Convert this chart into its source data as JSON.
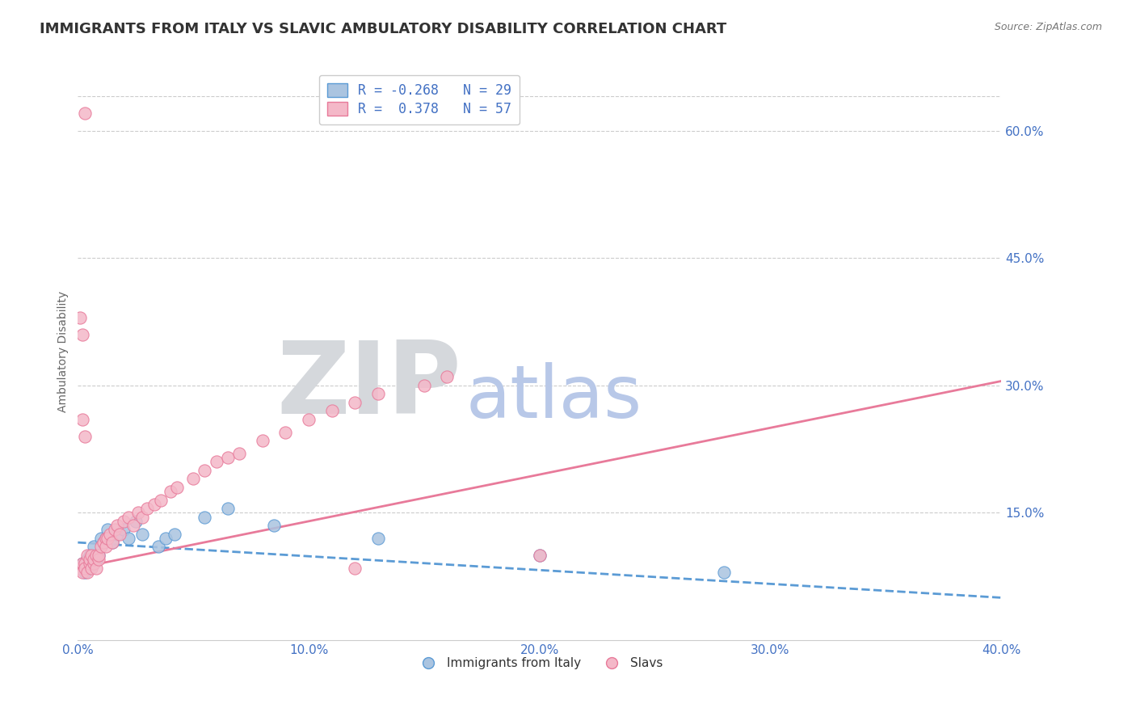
{
  "title": "IMMIGRANTS FROM ITALY VS SLAVIC AMBULATORY DISABILITY CORRELATION CHART",
  "source": "Source: ZipAtlas.com",
  "ylabel": "Ambulatory Disability",
  "xlim": [
    0.0,
    40.0
  ],
  "ylim": [
    0.0,
    68.0
  ],
  "yticks": [
    15.0,
    30.0,
    45.0,
    60.0
  ],
  "ytick_labels": [
    "15.0%",
    "30.0%",
    "45.0%",
    "60.0%"
  ],
  "xticks": [
    0.0,
    10.0,
    20.0,
    30.0,
    40.0
  ],
  "xtick_labels": [
    "0.0%",
    "10.0%",
    "20.0%",
    "30.0%",
    "40.0%"
  ],
  "italy_color": "#aac4e0",
  "italy_edge_color": "#5b9bd5",
  "slavs_color": "#f4b8c8",
  "slavs_edge_color": "#e87a9a",
  "italy_x": [
    0.2,
    0.3,
    0.4,
    0.5,
    0.5,
    0.6,
    0.7,
    0.7,
    0.8,
    0.9,
    1.0,
    1.1,
    1.2,
    1.3,
    1.5,
    1.7,
    2.0,
    2.2,
    2.5,
    2.8,
    3.5,
    3.8,
    4.2,
    5.5,
    6.5,
    8.5,
    13.0,
    20.0,
    28.0
  ],
  "italy_y": [
    9.0,
    8.0,
    9.5,
    10.0,
    8.5,
    9.0,
    11.0,
    9.0,
    9.5,
    10.0,
    12.0,
    11.5,
    12.0,
    13.0,
    11.5,
    12.5,
    13.0,
    12.0,
    14.0,
    12.5,
    11.0,
    12.0,
    12.5,
    14.5,
    15.5,
    13.5,
    12.0,
    10.0,
    8.0
  ],
  "slavs_x": [
    0.1,
    0.2,
    0.2,
    0.3,
    0.3,
    0.4,
    0.4,
    0.5,
    0.5,
    0.6,
    0.6,
    0.7,
    0.7,
    0.8,
    0.8,
    0.9,
    0.9,
    1.0,
    1.1,
    1.2,
    1.2,
    1.3,
    1.4,
    1.5,
    1.6,
    1.7,
    1.8,
    2.0,
    2.2,
    2.4,
    2.6,
    2.8,
    3.0,
    3.3,
    3.6,
    4.0,
    4.3,
    5.0,
    5.5,
    6.0,
    6.5,
    7.0,
    8.0,
    9.0,
    10.0,
    11.0,
    12.0,
    13.0,
    15.0,
    16.0,
    0.1,
    0.2,
    12.0,
    20.0,
    0.2,
    0.3,
    0.3
  ],
  "slavs_y": [
    8.5,
    9.0,
    8.0,
    9.0,
    8.5,
    10.0,
    8.0,
    9.0,
    9.5,
    10.0,
    8.5,
    9.0,
    9.5,
    10.0,
    8.5,
    9.5,
    10.0,
    11.0,
    11.5,
    12.0,
    11.0,
    12.0,
    12.5,
    11.5,
    13.0,
    13.5,
    12.5,
    14.0,
    14.5,
    13.5,
    15.0,
    14.5,
    15.5,
    16.0,
    16.5,
    17.5,
    18.0,
    19.0,
    20.0,
    21.0,
    21.5,
    22.0,
    23.5,
    24.5,
    26.0,
    27.0,
    28.0,
    29.0,
    30.0,
    31.0,
    38.0,
    36.0,
    8.5,
    10.0,
    26.0,
    24.0,
    62.0
  ],
  "italy_trend_x": [
    0.0,
    40.0
  ],
  "italy_trend_y": [
    11.5,
    5.0
  ],
  "slavs_trend_x": [
    0.0,
    40.0
  ],
  "slavs_trend_y": [
    8.5,
    30.5
  ],
  "watermark_zip_color": "#d5d8dc",
  "watermark_atlas_color": "#b8c8e8",
  "background_color": "#ffffff",
  "grid_color": "#cccccc",
  "title_fontsize": 13,
  "axis_label_fontsize": 10,
  "tick_fontsize": 11,
  "tick_color": "#4472c4",
  "legend_text_color": "#4472c4",
  "legend1_label1": "R = -0.268   N = 29",
  "legend1_label2": "R =  0.378   N = 57"
}
